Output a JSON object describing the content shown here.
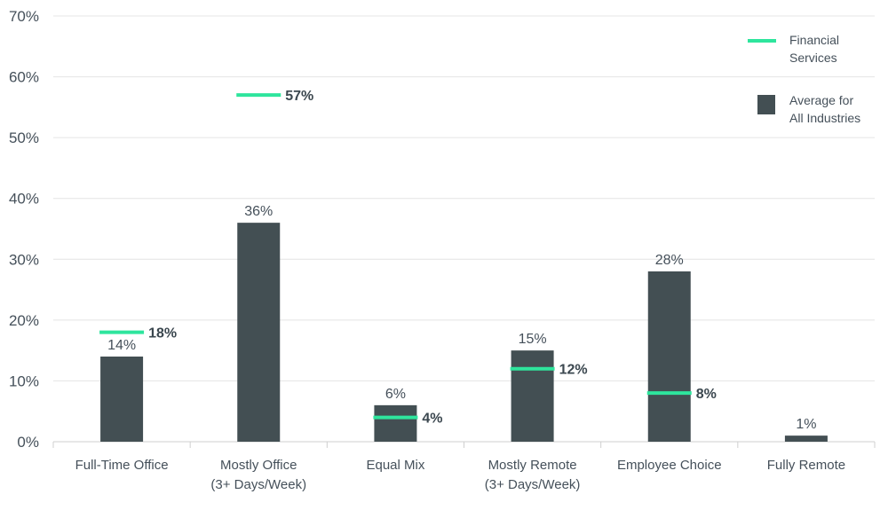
{
  "chart_data": {
    "type": "bar",
    "categories": [
      [
        "Full-Time Office"
      ],
      [
        "Mostly Office",
        "(3+ Days/Week)"
      ],
      [
        "Equal Mix"
      ],
      [
        "Mostly Remote",
        "(3+ Days/Week)"
      ],
      [
        "Employee Choice"
      ],
      [
        "Fully Remote"
      ]
    ],
    "series": [
      {
        "name": "Average for All Industries",
        "legend_lines": [
          "Average for",
          "All Industries"
        ],
        "kind": "bar",
        "values": [
          14,
          36,
          6,
          15,
          28,
          1
        ],
        "labels": [
          "14%",
          "36%",
          "6%",
          "15%",
          "28%",
          "1%"
        ],
        "color": "#434f53"
      },
      {
        "name": "Financial Services",
        "legend_lines": [
          "Financial",
          "Services"
        ],
        "kind": "marker",
        "values": [
          18,
          57,
          4,
          12,
          8,
          null
        ],
        "labels": [
          "18%",
          "57%",
          "4%",
          "12%",
          "8%",
          null
        ],
        "color": "#2ee59d"
      }
    ],
    "yticks": [
      "0%",
      "10%",
      "20%",
      "30%",
      "40%",
      "50%",
      "60%",
      "70%"
    ],
    "ylim": [
      0,
      70
    ],
    "grid": true,
    "legend": "top-right",
    "title": "",
    "xlabel": "",
    "ylabel": ""
  }
}
